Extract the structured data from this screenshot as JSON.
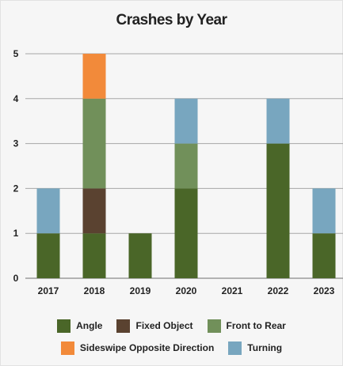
{
  "chart_data": {
    "type": "bar",
    "stacked": true,
    "title": "Crashes by Year",
    "xlabel": "",
    "ylabel": "",
    "categories": [
      "2017",
      "2018",
      "2019",
      "2020",
      "2021",
      "2022",
      "2023"
    ],
    "ylim": [
      0,
      5
    ],
    "yticks": [
      0,
      1,
      2,
      3,
      4,
      5
    ],
    "grid": true,
    "legend_position": "bottom",
    "series": [
      {
        "name": "Angle",
        "color": "#4a6628",
        "values": [
          1,
          1,
          1,
          2,
          0,
          3,
          1
        ]
      },
      {
        "name": "Fixed Object",
        "color": "#5a4230",
        "values": [
          0,
          1,
          0,
          0,
          0,
          0,
          0
        ]
      },
      {
        "name": "Front to Rear",
        "color": "#71905a",
        "values": [
          0,
          2,
          0,
          1,
          0,
          0,
          0
        ]
      },
      {
        "name": "Sideswipe Opposite Direction",
        "color": "#f28a3a",
        "values": [
          0,
          1,
          0,
          0,
          0,
          0,
          0
        ]
      },
      {
        "name": "Turning",
        "color": "#78a6bf",
        "values": [
          1,
          0,
          0,
          1,
          0,
          1,
          1
        ]
      }
    ]
  }
}
